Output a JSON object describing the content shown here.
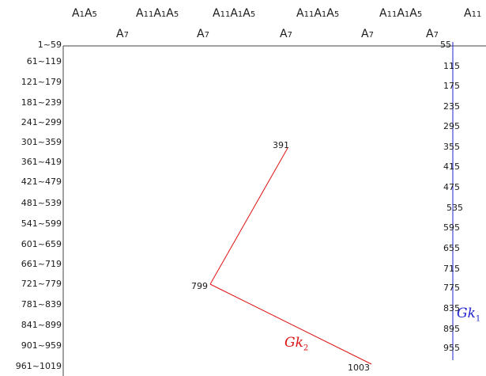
{
  "colors": {
    "axis": "#444444",
    "gk1": "#2222cc",
    "gk2": "#dd1111",
    "text": "#1a1a1a"
  },
  "header_row1": [
    {
      "a": "A",
      "as": "1",
      "b": "A",
      "bs": "5"
    },
    {
      "a": "A",
      "as": "11",
      "b": "A",
      "bs": "1",
      "c": "A",
      "cs": "5"
    },
    {
      "a": "A",
      "as": "11",
      "b": "A",
      "bs": "1",
      "c": "A",
      "cs": "5"
    },
    {
      "a": "A",
      "as": "11",
      "b": "A",
      "bs": "1",
      "c": "A",
      "cs": "5"
    },
    {
      "a": "A",
      "as": "11",
      "b": "A",
      "bs": "1",
      "c": "A",
      "cs": "5"
    },
    {
      "a": "A",
      "as": "11"
    }
  ],
  "header_row2": [
    {
      "a": "A",
      "as": "7"
    },
    {
      "a": "A",
      "as": "7"
    },
    {
      "a": "A",
      "as": "7"
    },
    {
      "a": "A",
      "as": "7"
    },
    {
      "a": "A",
      "as": "7"
    }
  ],
  "row_labels": [
    "1~59",
    "61~119",
    "121~179",
    "181~239",
    "241~299",
    "301~359",
    "361~419",
    "421~479",
    "481~539",
    "541~599",
    "601~659",
    "661~719",
    "721~779",
    "781~839",
    "841~899",
    "901~959",
    "961~1019"
  ],
  "gk1_values": [
    "55",
    "115",
    "175",
    "235",
    "295",
    "355",
    "415",
    "475",
    "535",
    "595",
    "655",
    "715",
    "775",
    "835",
    "895",
    "955"
  ],
  "gk2_points": [
    {
      "label": "391",
      "value": 391
    },
    {
      "label": "799",
      "value": 799
    },
    {
      "label": "1003",
      "value": 1003
    }
  ],
  "gk1_name": {
    "base": "Gk",
    "sub": "1"
  },
  "gk2_name": {
    "base": "Gk",
    "sub": "2"
  }
}
